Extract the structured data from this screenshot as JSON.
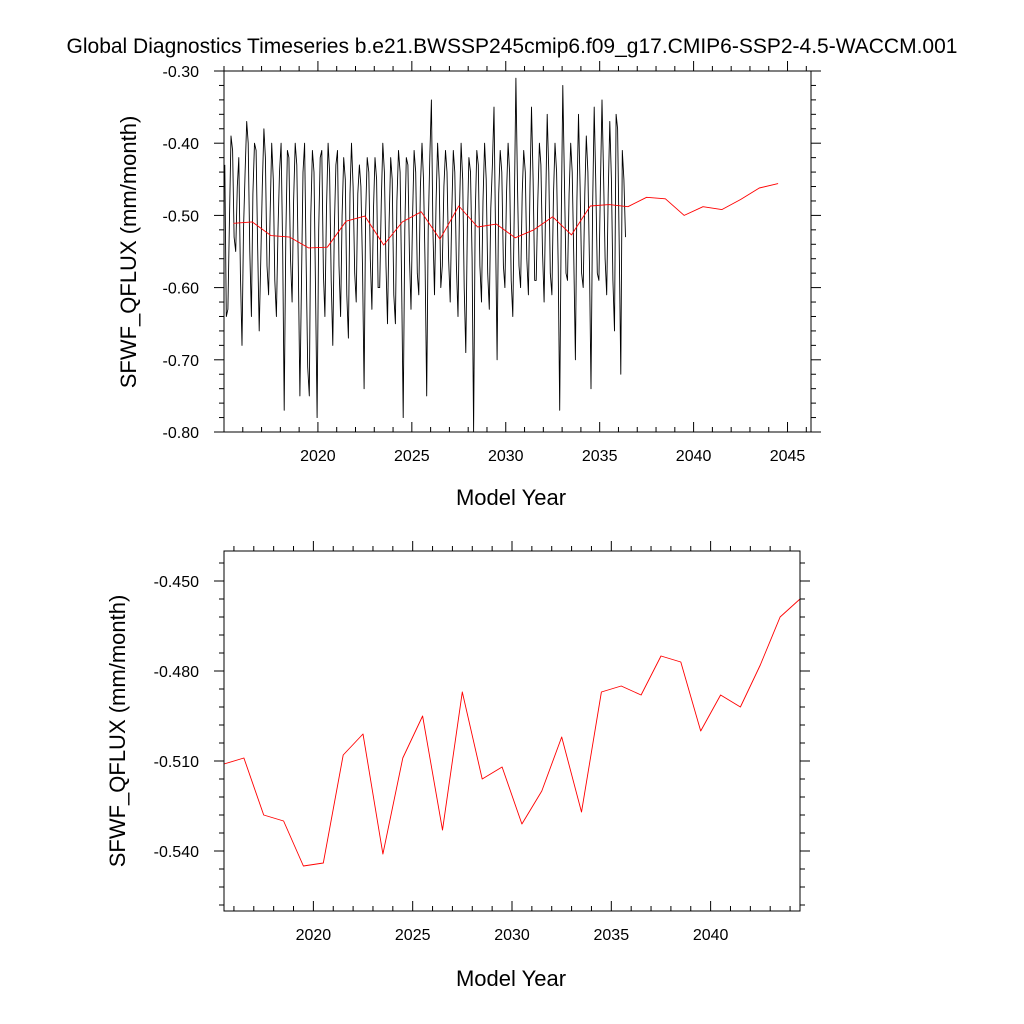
{
  "title": "Global Diagnostics Timeseries b.e21.BWSSP245cmip6.f09_g17.CMIP6-SSP2-4.5-WACCM.001",
  "colors": {
    "monthly_line": "#000000",
    "annual_line": "#ff0000",
    "frame": "#000000"
  },
  "chart_data": [
    {
      "type": "line",
      "name": "monthly-and-annual-panel",
      "xlabel": "Model Year",
      "ylabel": "SFWF_QFLUX (mm/month)",
      "xlim": [
        2015.0,
        2046.25
      ],
      "ylim": [
        -0.8,
        -0.3
      ],
      "xticks": [
        2020,
        2025,
        2030,
        2035,
        2040,
        2045
      ],
      "xtick_labels": [
        "2020",
        "2025",
        "2030",
        "2035",
        "2040",
        "2045"
      ],
      "yticks": [
        -0.8,
        -0.7,
        -0.6,
        -0.5,
        -0.4,
        -0.3
      ],
      "ytick_labels": [
        "-0.80",
        "-0.70",
        "-0.60",
        "-0.50",
        "-0.40",
        "-0.30"
      ],
      "series": [
        {
          "name": "monthly",
          "color": "#000000",
          "x_start": 2015.04,
          "x_step": 0.08333,
          "values": [
            -0.43,
            -0.64,
            -0.63,
            -0.51,
            -0.39,
            -0.41,
            -0.53,
            -0.55,
            -0.46,
            -0.42,
            -0.58,
            -0.68,
            -0.52,
            -0.44,
            -0.37,
            -0.4,
            -0.55,
            -0.64,
            -0.47,
            -0.4,
            -0.41,
            -0.54,
            -0.66,
            -0.56,
            -0.46,
            -0.38,
            -0.42,
            -0.57,
            -0.61,
            -0.5,
            -0.4,
            -0.45,
            -0.59,
            -0.64,
            -0.52,
            -0.44,
            -0.4,
            -0.55,
            -0.77,
            -0.53,
            -0.41,
            -0.42,
            -0.56,
            -0.62,
            -0.48,
            -0.4,
            -0.43,
            -0.57,
            -0.75,
            -0.6,
            -0.44,
            -0.4,
            -0.56,
            -0.71,
            -0.75,
            -0.5,
            -0.41,
            -0.44,
            -0.6,
            -0.78,
            -0.52,
            -0.42,
            -0.41,
            -0.58,
            -0.64,
            -0.49,
            -0.4,
            -0.44,
            -0.59,
            -0.68,
            -0.52,
            -0.43,
            -0.41,
            -0.57,
            -0.64,
            -0.5,
            -0.42,
            -0.45,
            -0.61,
            -0.67,
            -0.47,
            -0.4,
            -0.46,
            -0.58,
            -0.62,
            -0.47,
            -0.43,
            -0.46,
            -0.57,
            -0.74,
            -0.5,
            -0.42,
            -0.44,
            -0.56,
            -0.63,
            -0.49,
            -0.42,
            -0.45,
            -0.6,
            -0.6,
            -0.48,
            -0.4,
            -0.44,
            -0.57,
            -0.65,
            -0.51,
            -0.42,
            -0.45,
            -0.61,
            -0.65,
            -0.48,
            -0.41,
            -0.44,
            -0.59,
            -0.78,
            -0.52,
            -0.42,
            -0.43,
            -0.56,
            -0.63,
            -0.5,
            -0.41,
            -0.44,
            -0.58,
            -0.61,
            -0.46,
            -0.4,
            -0.45,
            -0.57,
            -0.75,
            -0.52,
            -0.42,
            -0.34,
            -0.52,
            -0.61,
            -0.48,
            -0.4,
            -0.45,
            -0.6,
            -0.57,
            -0.46,
            -0.41,
            -0.44,
            -0.56,
            -0.62,
            -0.5,
            -0.41,
            -0.44,
            -0.57,
            -0.64,
            -0.49,
            -0.4,
            -0.45,
            -0.6,
            -0.69,
            -0.51,
            -0.42,
            -0.44,
            -0.56,
            -0.8,
            -0.5,
            -0.41,
            -0.43,
            -0.57,
            -0.62,
            -0.48,
            -0.4,
            -0.45,
            -0.58,
            -0.63,
            -0.49,
            -0.43,
            -0.35,
            -0.52,
            -0.7,
            -0.47,
            -0.41,
            -0.44,
            -0.57,
            -0.6,
            -0.47,
            -0.4,
            -0.44,
            -0.59,
            -0.64,
            -0.49,
            -0.31,
            -0.46,
            -0.57,
            -0.6,
            -0.47,
            -0.41,
            -0.44,
            -0.56,
            -0.61,
            -0.46,
            -0.35,
            -0.45,
            -0.59,
            -0.59,
            -0.48,
            -0.4,
            -0.43,
            -0.55,
            -0.62,
            -0.49,
            -0.36,
            -0.44,
            -0.58,
            -0.61,
            -0.47,
            -0.4,
            -0.44,
            -0.57,
            -0.77,
            -0.5,
            -0.32,
            -0.45,
            -0.58,
            -0.59,
            -0.47,
            -0.4,
            -0.44,
            -0.56,
            -0.7,
            -0.48,
            -0.36,
            -0.46,
            -0.58,
            -0.6,
            -0.47,
            -0.39,
            -0.44,
            -0.57,
            -0.74,
            -0.49,
            -0.35,
            -0.45,
            -0.58,
            -0.59,
            -0.46,
            -0.34,
            -0.44,
            -0.56,
            -0.61,
            -0.47,
            -0.37,
            -0.45,
            -0.59,
            -0.66,
            -0.36,
            -0.38,
            -0.54,
            -0.72,
            -0.41,
            -0.45,
            -0.53
          ]
        },
        {
          "name": "annual-mean",
          "color": "#ff0000",
          "x": [
            2015.5,
            2016.5,
            2017.5,
            2018.5,
            2019.5,
            2020.5,
            2021.5,
            2022.5,
            2023.5,
            2024.5,
            2025.5,
            2026.5,
            2027.5,
            2028.5,
            2029.5,
            2030.5,
            2031.5,
            2032.5,
            2033.5,
            2034.5,
            2035.5,
            2036.5,
            2037.5,
            2038.5,
            2039.5,
            2040.5,
            2041.5,
            2042.5,
            2043.5,
            2044.5
          ],
          "values": [
            -0.511,
            -0.509,
            -0.528,
            -0.53,
            -0.545,
            -0.544,
            -0.508,
            -0.501,
            -0.541,
            -0.509,
            -0.495,
            -0.533,
            -0.487,
            -0.516,
            -0.512,
            -0.531,
            -0.52,
            -0.502,
            -0.527,
            -0.487,
            -0.485,
            -0.488,
            -0.475,
            -0.477,
            -0.5,
            -0.488,
            -0.492,
            -0.478,
            -0.462,
            -0.456
          ]
        }
      ]
    },
    {
      "type": "line",
      "name": "annual-panel",
      "xlabel": "Model Year",
      "ylabel": "SFWF_QFLUX (mm/month)",
      "xlim": [
        2015.5,
        2044.5
      ],
      "ylim": [
        -0.56,
        -0.44
      ],
      "xticks": [
        2020,
        2025,
        2030,
        2035,
        2040
      ],
      "xtick_labels": [
        "2020",
        "2025",
        "2030",
        "2035",
        "2040"
      ],
      "yticks": [
        -0.54,
        -0.51,
        -0.48,
        -0.45
      ],
      "ytick_labels": [
        "-0.540",
        "-0.510",
        "-0.480",
        "-0.450"
      ],
      "series": [
        {
          "name": "annual-mean",
          "color": "#ff0000",
          "x": [
            2015.5,
            2016.5,
            2017.5,
            2018.5,
            2019.5,
            2020.5,
            2021.5,
            2022.5,
            2023.5,
            2024.5,
            2025.5,
            2026.5,
            2027.5,
            2028.5,
            2029.5,
            2030.5,
            2031.5,
            2032.5,
            2033.5,
            2034.5,
            2035.5,
            2036.5,
            2037.5,
            2038.5,
            2039.5,
            2040.5,
            2041.5,
            2042.5,
            2043.5,
            2044.5
          ],
          "values": [
            -0.511,
            -0.509,
            -0.528,
            -0.53,
            -0.545,
            -0.544,
            -0.508,
            -0.501,
            -0.541,
            -0.509,
            -0.495,
            -0.533,
            -0.487,
            -0.516,
            -0.512,
            -0.531,
            -0.52,
            -0.502,
            -0.527,
            -0.487,
            -0.485,
            -0.488,
            -0.475,
            -0.477,
            -0.5,
            -0.488,
            -0.492,
            -0.478,
            -0.462,
            -0.456
          ]
        }
      ]
    }
  ]
}
